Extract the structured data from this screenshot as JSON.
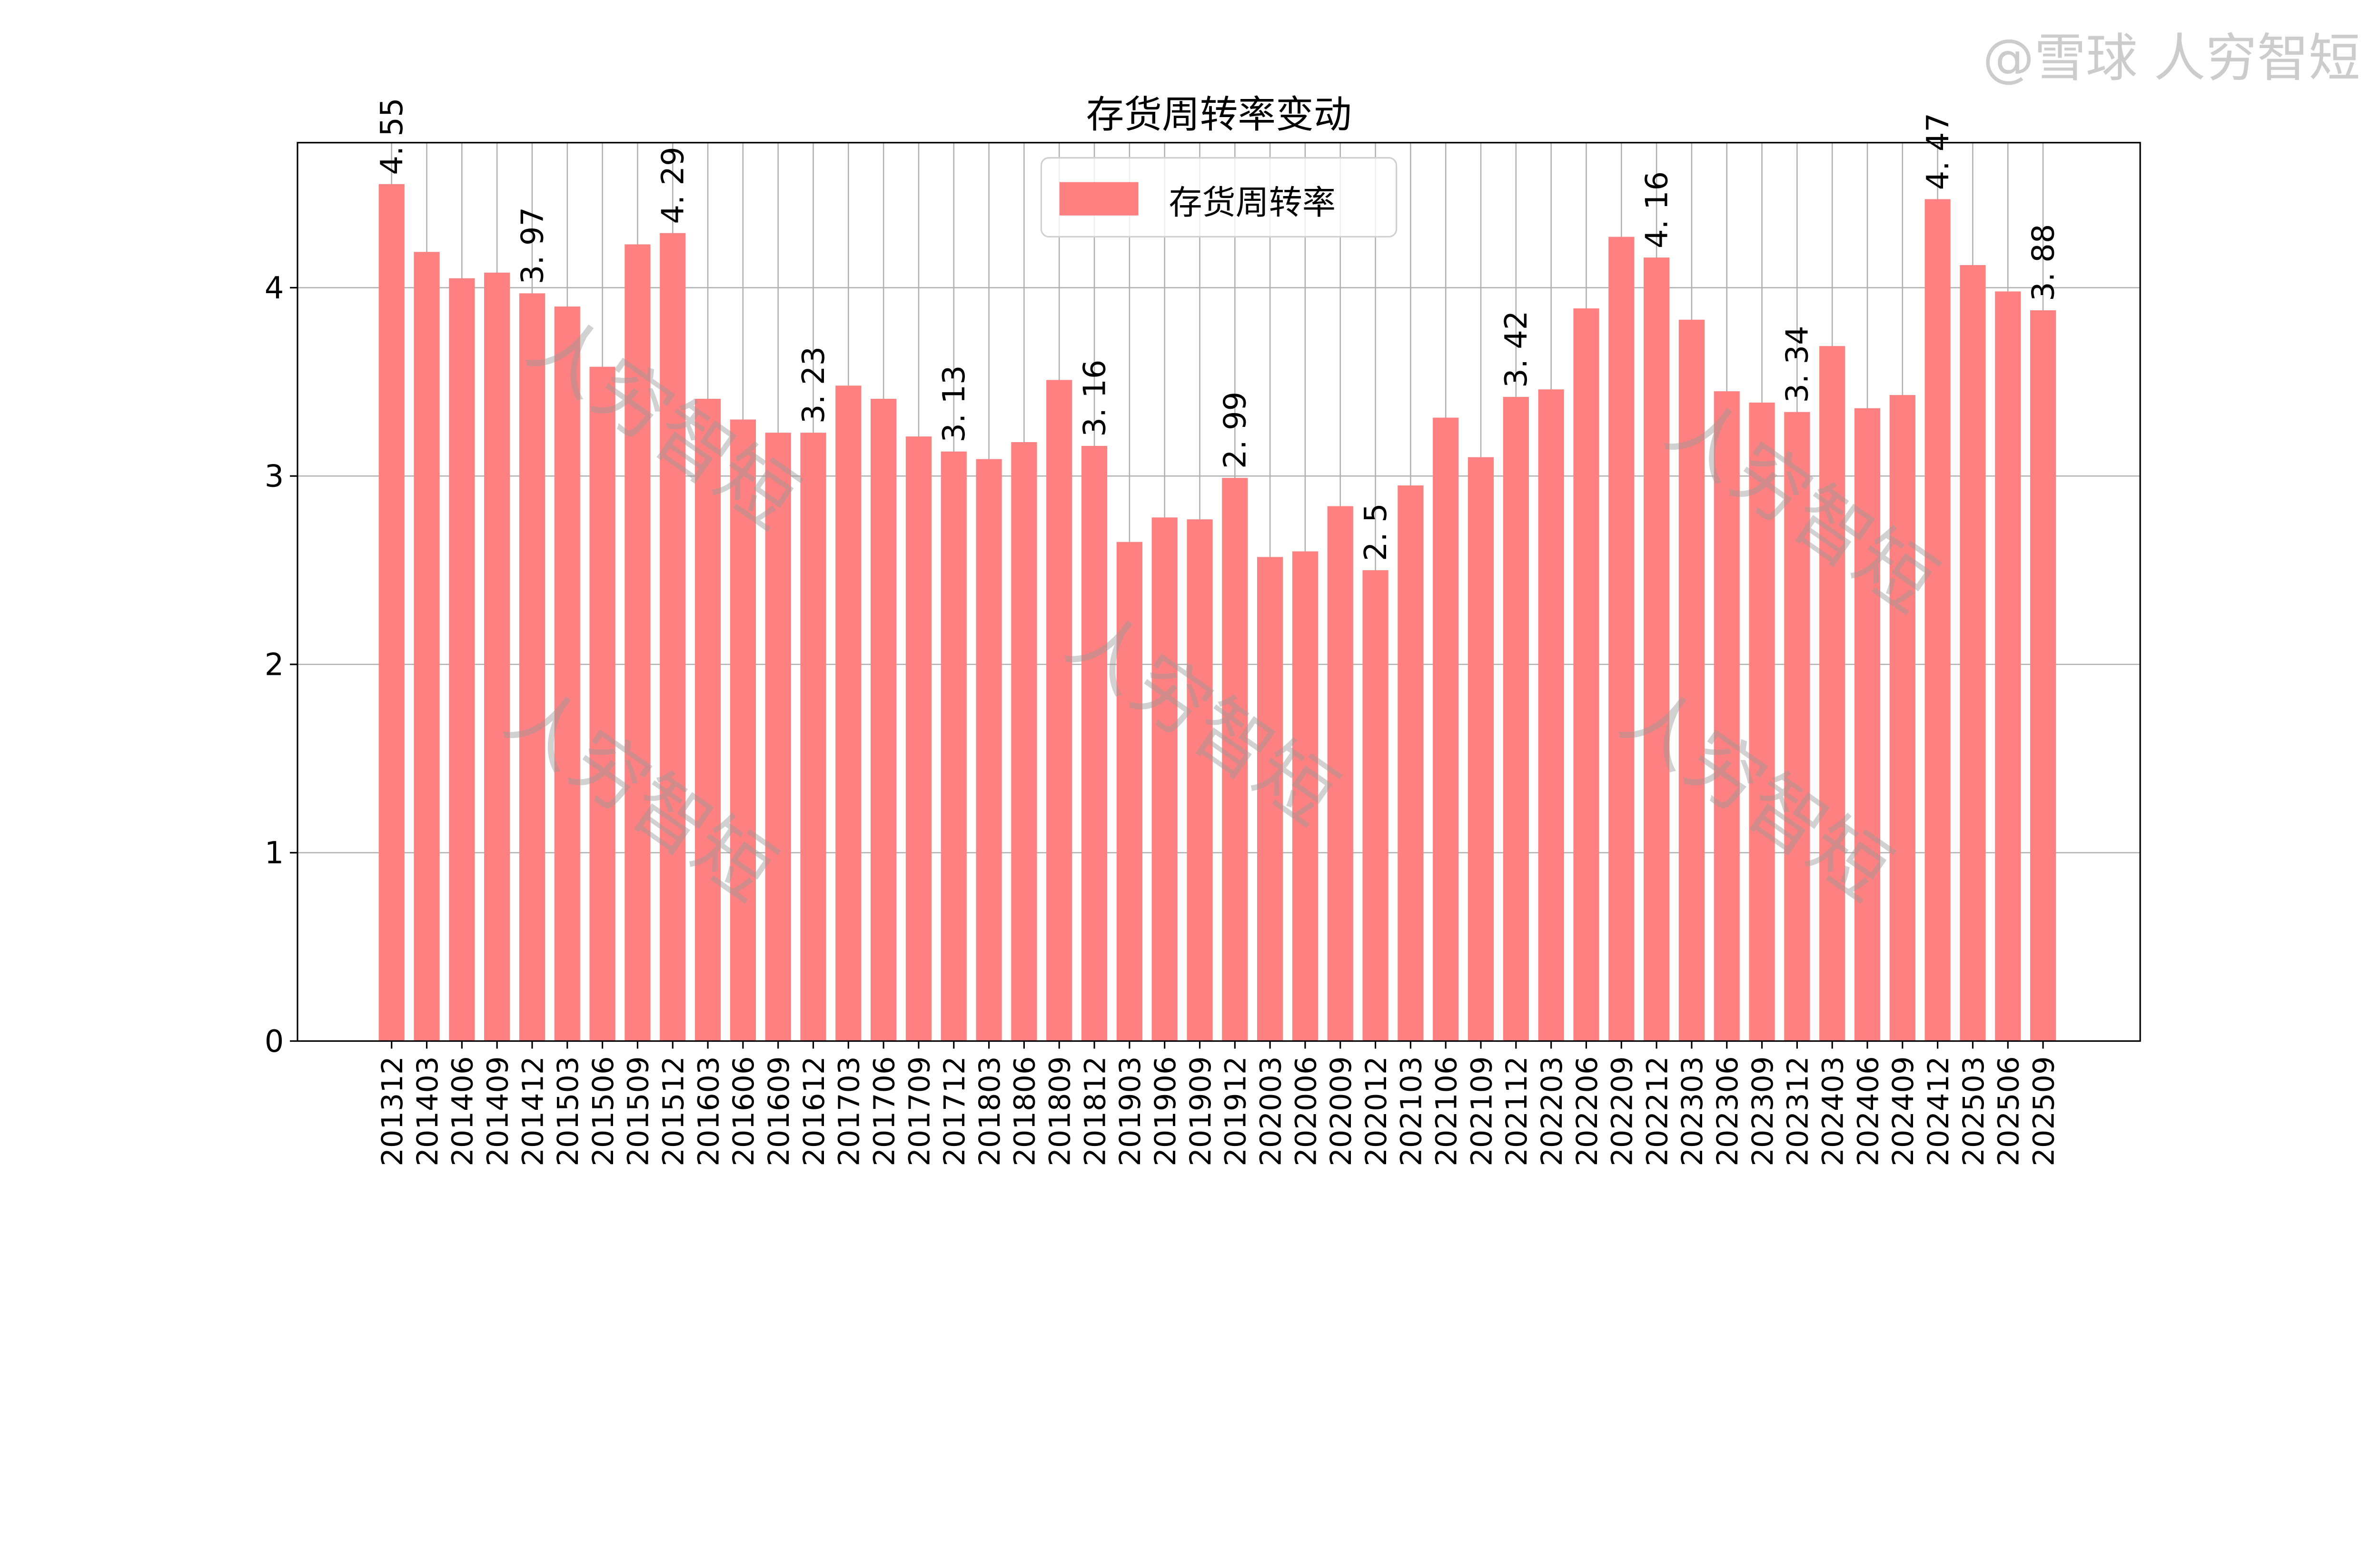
{
  "chart_data": {
    "type": "bar",
    "title": "存货周转率变动",
    "xlabel": "",
    "ylabel": "",
    "ylim": [
      0,
      4.77
    ],
    "yticks": [
      0,
      1,
      2,
      3,
      4
    ],
    "grid": true,
    "legend_placement": "top-center",
    "bar_color": "#ff8080",
    "series": [
      {
        "name": "存货周转率"
      }
    ],
    "categories": [
      "201312",
      "201403",
      "201406",
      "201409",
      "201412",
      "201503",
      "201506",
      "201509",
      "201512",
      "201603",
      "201606",
      "201609",
      "201612",
      "201703",
      "201706",
      "201709",
      "201712",
      "201803",
      "201806",
      "201809",
      "201812",
      "201903",
      "201906",
      "201909",
      "201912",
      "202003",
      "202006",
      "202009",
      "202012",
      "202103",
      "202106",
      "202109",
      "202112",
      "202203",
      "202206",
      "202209",
      "202212",
      "202303",
      "202306",
      "202309",
      "202312",
      "202403",
      "202406",
      "202409",
      "202412",
      "202503",
      "202506",
      "202509"
    ],
    "values": [
      4.55,
      4.19,
      4.05,
      4.08,
      3.97,
      3.9,
      3.58,
      4.23,
      4.29,
      3.41,
      3.3,
      3.23,
      3.23,
      3.48,
      3.41,
      3.21,
      3.13,
      3.09,
      3.18,
      3.51,
      3.16,
      2.65,
      2.78,
      2.77,
      2.99,
      2.57,
      2.6,
      2.84,
      2.5,
      2.95,
      3.31,
      3.1,
      3.42,
      3.46,
      3.89,
      4.27,
      4.16,
      3.83,
      3.45,
      3.39,
      3.34,
      3.69,
      3.36,
      3.43,
      4.47,
      4.12,
      3.98,
      3.88
    ],
    "data_labels": [
      {
        "category": "201312",
        "text": "4. 55"
      },
      {
        "category": "201412",
        "text": "3. 97"
      },
      {
        "category": "201512",
        "text": "4. 29"
      },
      {
        "category": "201612",
        "text": "3. 23"
      },
      {
        "category": "201712",
        "text": "3. 13"
      },
      {
        "category": "201812",
        "text": "3. 16"
      },
      {
        "category": "201912",
        "text": "2. 99"
      },
      {
        "category": "202012",
        "text": "2. 5"
      },
      {
        "category": "202112",
        "text": "3. 42"
      },
      {
        "category": "202212",
        "text": "4. 16"
      },
      {
        "category": "202312",
        "text": "3. 34"
      },
      {
        "category": "202412",
        "text": "4. 47"
      },
      {
        "category": "202509",
        "text": "3. 88"
      }
    ]
  },
  "watermark": "人穷智短",
  "footer_watermark": "@雪球 人穷智短"
}
